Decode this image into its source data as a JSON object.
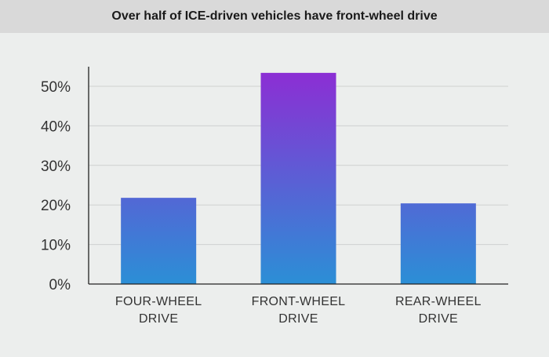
{
  "chart_data": {
    "type": "bar",
    "title": "Over half of ICE-driven vehicles have front-wheel drive",
    "categories": [
      [
        "FOUR-WHEEL",
        "DRIVE"
      ],
      [
        "FRONT-WHEEL",
        "DRIVE"
      ],
      [
        "REAR-WHEEL",
        "DRIVE"
      ]
    ],
    "values": [
      21.8,
      53.4,
      20.4
    ],
    "ylim": [
      0,
      55
    ],
    "yticks": [
      0,
      10,
      20,
      30,
      40,
      50
    ],
    "ytick_labels": [
      "0%",
      "10%",
      "20%",
      "30%",
      "40%",
      "50%"
    ],
    "grid": true,
    "bar_gradient": {
      "top": "#8b2fd4",
      "bottom": "#2b8fd6"
    },
    "xlabel": "",
    "ylabel": ""
  }
}
